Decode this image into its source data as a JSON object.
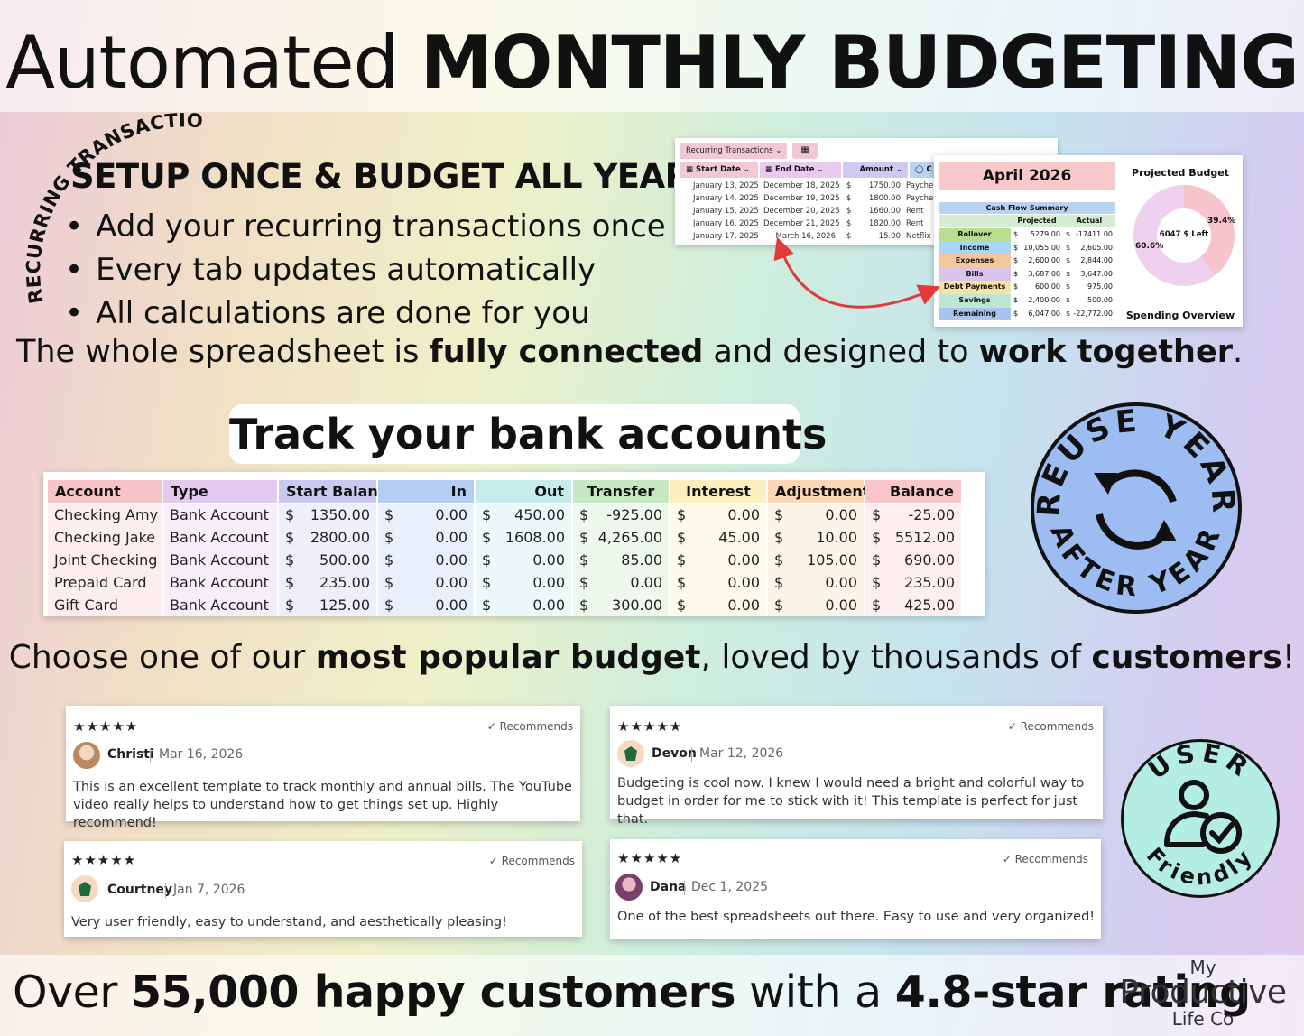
{
  "header": {
    "title_light": "Automated ",
    "title_bold": "MONTHLY BUDGETING"
  },
  "recurring": {
    "arc_text": "RECURRING TRANSACTIONS",
    "heading": "SETUP ONCE & BUDGET ALL YEAR",
    "bullets": [
      "Add your recurring transactions once",
      "Every tab updates automatically",
      "All calculations are done for you"
    ],
    "connected": {
      "p1": "The whole spreadsheet is ",
      "b1": "fully connected",
      "p2": " and designed to ",
      "b2": "work together",
      "p3": "."
    }
  },
  "rec_sheet": {
    "tab": "Recurring Transactions",
    "columns": [
      "Start Date",
      "End Date",
      "Amount",
      "C"
    ],
    "rows": [
      {
        "start": "January 13, 2025",
        "end": "December 18, 2025",
        "cur": "$",
        "amount": "1750.00",
        "cat": "Payche"
      },
      {
        "start": "January 14, 2025",
        "end": "December 19, 2025",
        "cur": "$",
        "amount": "1800.00",
        "cat": "Payche"
      },
      {
        "start": "January 15, 2025",
        "end": "December 20, 2025",
        "cur": "$",
        "amount": "1660.00",
        "cat": "Rent"
      },
      {
        "start": "January 16, 2025",
        "end": "December 21, 2025",
        "cur": "$",
        "amount": "1820.00",
        "cat": "Rent"
      },
      {
        "start": "January 17, 2025",
        "end": "March 16, 2026",
        "cur": "$",
        "amount": "15.00",
        "cat": "Netflix"
      }
    ]
  },
  "cash_flow": {
    "month": "April 2026",
    "title": "Cash Flow Summary",
    "col_projected": "Projected",
    "col_actual": "Actual",
    "rows": [
      {
        "label": "Rollover",
        "projected": "5279.00",
        "actual": "-17411.00",
        "color": "#b7dd8e"
      },
      {
        "label": "Income",
        "projected": "10,055.00",
        "actual": "2,605.00",
        "color": "#a9d6f5"
      },
      {
        "label": "Expenses",
        "projected": "2,600.00",
        "actual": "2,844.00",
        "color": "#f6c79b"
      },
      {
        "label": "Bills",
        "projected": "3,687.00",
        "actual": "3,647.00",
        "color": "#d9c4ec"
      },
      {
        "label": "Debt Payments",
        "projected": "600.00",
        "actual": "975.00",
        "color": "#f6e2a6"
      },
      {
        "label": "Savings",
        "projected": "2,400.00",
        "actual": "500.00",
        "color": "#bfe6d2"
      },
      {
        "label": "Remaining",
        "projected": "6,047.00",
        "actual": "-22,772.00",
        "color": "#a9c4ee"
      }
    ],
    "currency": "$"
  },
  "projected_budget": {
    "title": "Projected Budget",
    "center": "6047 $ Left",
    "slices": [
      {
        "label": "39.4%",
        "value": 39.4,
        "color": "#f7c3cd"
      },
      {
        "label": "60.6%",
        "value": 60.6,
        "color": "#efd0ef"
      }
    ],
    "footer": "Spending Overview"
  },
  "bank": {
    "heading": "Track your bank accounts",
    "currency": "$",
    "columns": [
      {
        "label": "Account",
        "color": "#f6c3c8"
      },
      {
        "label": "Type",
        "color": "#e2c9ee"
      },
      {
        "label": "Start Balance",
        "color": "#c9c9f2"
      },
      {
        "label": "In",
        "color": "#b5cdf3"
      },
      {
        "label": "Out",
        "color": "#c5ecea"
      },
      {
        "label": "Transfer",
        "color": "#c6e8c3"
      },
      {
        "label": "Interest",
        "color": "#fbefbd"
      },
      {
        "label": "Adjustment",
        "color": "#fbd7b6"
      },
      {
        "label": "Balance",
        "color": "#f8c6cb"
      }
    ],
    "rows": [
      {
        "account": "Checking Amy",
        "type": "Bank Account",
        "start": "1350.00",
        "in": "0.00",
        "out": "450.00",
        "transfer": "-925.00",
        "interest": "0.00",
        "adjustment": "0.00",
        "balance": "-25.00"
      },
      {
        "account": "Checking Jake",
        "type": "Bank Account",
        "start": "2800.00",
        "in": "0.00",
        "out": "1608.00",
        "transfer": "4,265.00",
        "interest": "45.00",
        "adjustment": "10.00",
        "balance": "5512.00"
      },
      {
        "account": "Joint Checking",
        "type": "Bank Account",
        "start": "500.00",
        "in": "0.00",
        "out": "0.00",
        "transfer": "85.00",
        "interest": "0.00",
        "adjustment": "105.00",
        "balance": "690.00"
      },
      {
        "account": "Prepaid Card",
        "type": "Bank Account",
        "start": "235.00",
        "in": "0.00",
        "out": "0.00",
        "transfer": "0.00",
        "interest": "0.00",
        "adjustment": "0.00",
        "balance": "235.00"
      },
      {
        "account": "Gift Card",
        "type": "Bank Account",
        "start": "125.00",
        "in": "0.00",
        "out": "0.00",
        "transfer": "300.00",
        "interest": "0.00",
        "adjustment": "0.00",
        "balance": "425.00"
      }
    ]
  },
  "badges": {
    "reuse_top": "REUSE YEAR",
    "reuse_bottom": "AFTER YEAR",
    "reuse_color": "#9dbdf2",
    "user_top": "USER",
    "user_bottom": "Friendly",
    "user_color": "#b3ede4"
  },
  "choose": {
    "p1": "Choose one of our ",
    "b1": "most popular budget",
    "p2": ", loved by thousands of ",
    "b2": "customers",
    "p3": "!"
  },
  "reviews": [
    {
      "stars": "★★★★★",
      "rec": "✓ Recommends",
      "name": "Christi",
      "date": "Mar 16, 2026",
      "text": "This is an excellent template to track monthly and annual bills. The YouTube video really helps to understand how to get things set up. Highly recommend!"
    },
    {
      "stars": "★★★★★",
      "rec": "✓ Recommends",
      "name": "Devon",
      "date": "Mar 12, 2026",
      "text": "Budgeting is cool now. I knew I would need a bright and colorful way to budget in order for me to stick with it! This template is perfect for just that."
    },
    {
      "stars": "★★★★★",
      "rec": "✓ Recommends",
      "name": "Courtney",
      "date": "Jan 7, 2026",
      "text": "Very user friendly, easy to understand, and aesthetically pleasing!"
    },
    {
      "stars": "★★★★★",
      "rec": "✓ Recommends",
      "name": "Dana",
      "date": "Dec 1, 2025",
      "text": "One of the best spreadsheets out there. Easy to use and very organized!"
    }
  ],
  "footer": {
    "p1": "Over ",
    "b1": "55,000 happy customers",
    "p2": " with a ",
    "b2": "4.8-star rating",
    "logo_l1": "My",
    "logo_l2": "Productive",
    "logo_l3": "Life Co"
  }
}
